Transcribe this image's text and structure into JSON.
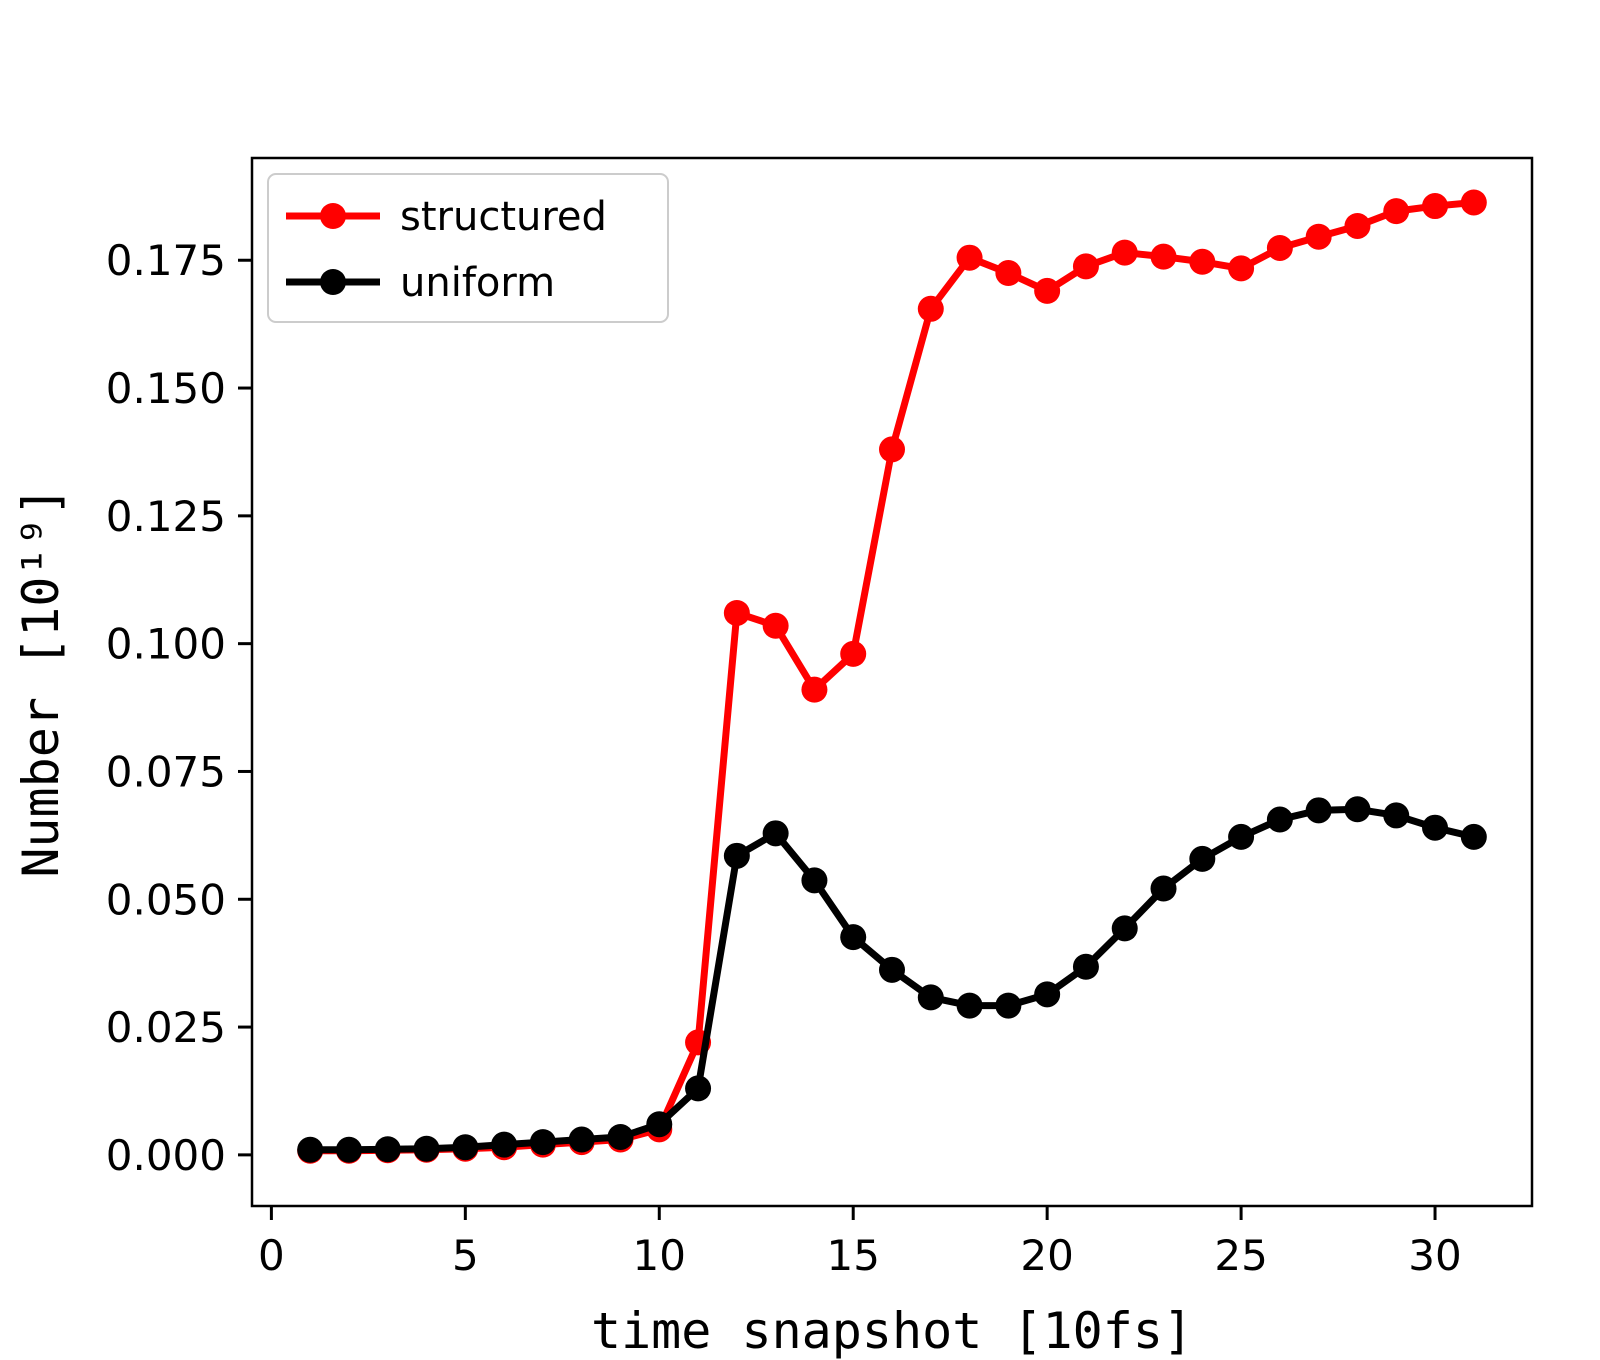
{
  "figure": {
    "background": "#ffffff",
    "frame_color": "#000000"
  },
  "chart_data": {
    "type": "line",
    "title": "",
    "xlabel": "time snapshot [10fs]",
    "ylabel": "Number [10¹⁹]",
    "grid": false,
    "legend_position": "upper-left",
    "xlim": [
      -0.5,
      32.5
    ],
    "ylim": [
      -0.01,
      0.195
    ],
    "xticks": [
      0,
      5,
      10,
      15,
      20,
      25,
      30
    ],
    "xticklabels": [
      "0",
      "5",
      "10",
      "15",
      "20",
      "25",
      "30"
    ],
    "yticks": [
      0.0,
      0.025,
      0.05,
      0.075,
      0.1,
      0.125,
      0.15,
      0.175
    ],
    "yticklabels": [
      "0.000",
      "0.025",
      "0.050",
      "0.075",
      "0.100",
      "0.125",
      "0.150",
      "0.175"
    ],
    "marker": "circle",
    "marker_size": 13,
    "line_width": 7,
    "x": [
      1,
      2,
      3,
      4,
      5,
      6,
      7,
      8,
      9,
      10,
      11,
      12,
      13,
      14,
      15,
      16,
      17,
      18,
      19,
      20,
      21,
      22,
      23,
      24,
      25,
      26,
      27,
      28,
      29,
      30,
      31
    ],
    "series": [
      {
        "name": "structured",
        "color": "#ff0000",
        "values": [
          0.0008,
          0.0008,
          0.0009,
          0.001,
          0.0012,
          0.0015,
          0.002,
          0.0025,
          0.003,
          0.005,
          0.022,
          0.106,
          0.1035,
          0.091,
          0.098,
          0.138,
          0.1655,
          0.1755,
          0.1725,
          0.169,
          0.1738,
          0.1765,
          0.1757,
          0.1747,
          0.1734,
          0.1774,
          0.1796,
          0.1817,
          0.1846,
          0.1856,
          0.1863
        ]
      },
      {
        "name": "uniform",
        "color": "#000000",
        "values": [
          0.001,
          0.001,
          0.0011,
          0.0012,
          0.0015,
          0.002,
          0.0025,
          0.003,
          0.0035,
          0.006,
          0.013,
          0.0585,
          0.0629,
          0.0537,
          0.0426,
          0.0362,
          0.0308,
          0.0292,
          0.0292,
          0.0314,
          0.0368,
          0.0443,
          0.0521,
          0.0579,
          0.0622,
          0.0656,
          0.0674,
          0.0676,
          0.0664,
          0.064,
          0.0622
        ]
      }
    ]
  }
}
